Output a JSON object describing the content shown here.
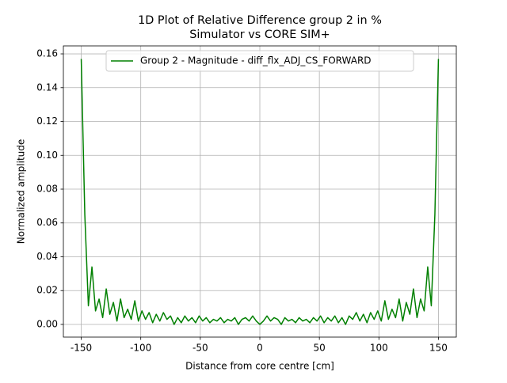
{
  "chart_data": {
    "type": "line",
    "title": "1D Plot of Relative Difference group 2 in %",
    "subtitle": "Simulator vs CORE SIM+",
    "xlabel": "Distance from core centre [cm]",
    "ylabel": "Normalized amplitude",
    "x": [
      -150,
      -147,
      -144,
      -141,
      -138,
      -135,
      -132,
      -129,
      -126,
      -123,
      -120,
      -117,
      -114,
      -111,
      -108,
      -105,
      -102,
      -99,
      -96,
      -93,
      -90,
      -87,
      -84,
      -81,
      -78,
      -75,
      -72,
      -69,
      -66,
      -63,
      -60,
      -57,
      -54,
      -51,
      -48,
      -45,
      -42,
      -39,
      -36,
      -33,
      -30,
      -27,
      -24,
      -21,
      -18,
      -15,
      -12,
      -9,
      -6,
      -3,
      0,
      3,
      6,
      9,
      12,
      15,
      18,
      21,
      24,
      27,
      30,
      33,
      36,
      39,
      42,
      45,
      48,
      51,
      54,
      57,
      60,
      63,
      66,
      69,
      72,
      75,
      78,
      81,
      84,
      87,
      90,
      93,
      96,
      99,
      102,
      105,
      108,
      111,
      114,
      117,
      120,
      123,
      126,
      129,
      132,
      135,
      138,
      141,
      144,
      147,
      150
    ],
    "series": [
      {
        "name": "Group 2 - Magnitude - diff_flx_ADJ_CS_FORWARD",
        "color": "#008000",
        "values": [
          0.157,
          0.065,
          0.011,
          0.034,
          0.008,
          0.015,
          0.004,
          0.021,
          0.006,
          0.013,
          0.002,
          0.015,
          0.004,
          0.009,
          0.003,
          0.014,
          0.002,
          0.008,
          0.003,
          0.007,
          0.001,
          0.006,
          0.002,
          0.007,
          0.003,
          0.005,
          0.0,
          0.004,
          0.001,
          0.005,
          0.002,
          0.004,
          0.001,
          0.005,
          0.002,
          0.004,
          0.001,
          0.003,
          0.002,
          0.004,
          0.001,
          0.003,
          0.002,
          0.004,
          0.0,
          0.003,
          0.004,
          0.002,
          0.005,
          0.002,
          0.0,
          0.002,
          0.005,
          0.002,
          0.004,
          0.003,
          0.0,
          0.004,
          0.002,
          0.003,
          0.001,
          0.004,
          0.002,
          0.003,
          0.001,
          0.004,
          0.002,
          0.005,
          0.001,
          0.004,
          0.002,
          0.005,
          0.001,
          0.004,
          0.0,
          0.005,
          0.003,
          0.007,
          0.002,
          0.006,
          0.001,
          0.007,
          0.003,
          0.008,
          0.002,
          0.014,
          0.003,
          0.009,
          0.004,
          0.015,
          0.002,
          0.013,
          0.006,
          0.021,
          0.004,
          0.015,
          0.008,
          0.034,
          0.011,
          0.065,
          0.157
        ]
      }
    ],
    "xlim": [
      -165,
      165
    ],
    "ylim": [
      -0.0075,
      0.1647
    ],
    "xticks": [
      -150,
      -100,
      -50,
      0,
      50,
      100,
      150
    ],
    "yticks": [
      {
        "value": 0,
        "label": "0.00"
      },
      0.02,
      0.04,
      0.06,
      0.08,
      {
        "value": 0.1,
        "label": "0.10"
      },
      0.12,
      0.14,
      0.16
    ],
    "grid": true,
    "legend": "upper center"
  }
}
